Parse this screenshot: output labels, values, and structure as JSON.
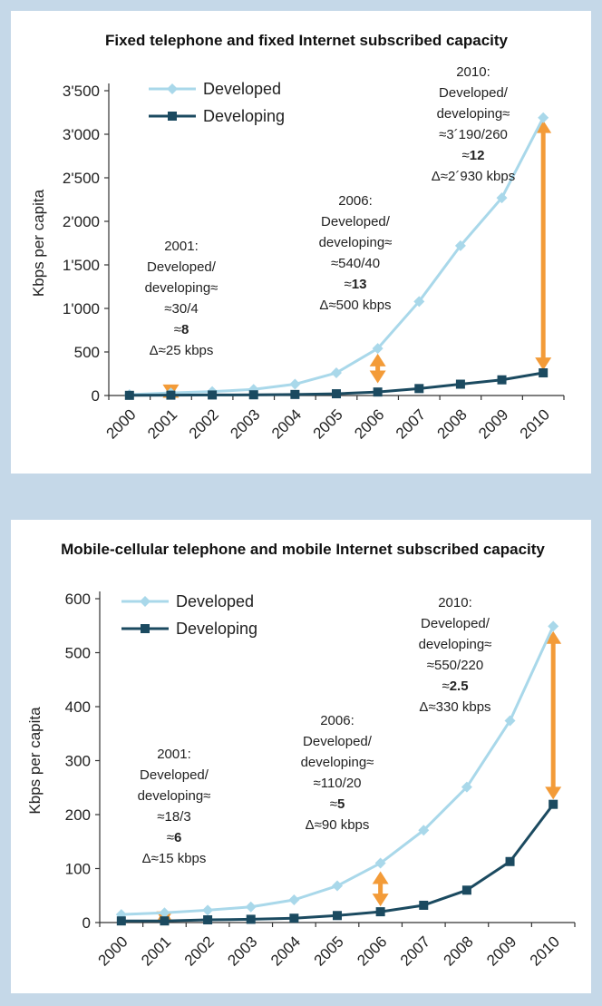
{
  "colors": {
    "developed": "#a9d8ea",
    "developing": "#1b4a60",
    "arrow": "#f39b38",
    "axis": "#333333"
  },
  "chart_data": [
    {
      "type": "line",
      "title": "Fixed telephone and fixed Internet subscribed capacity",
      "ylabel": "Kbps per capita",
      "xlabel": "",
      "categories": [
        "2000",
        "2001",
        "2002",
        "2003",
        "2004",
        "2005",
        "2006",
        "2007",
        "2008",
        "2009",
        "2010"
      ],
      "ylim": [
        0,
        3500
      ],
      "yticks": [
        0,
        500,
        1000,
        1500,
        2000,
        2500,
        3000,
        3500
      ],
      "ytick_labels": [
        "0",
        "500",
        "1'000",
        "1'500",
        "2'000",
        "2'500",
        "3'000",
        "3'500"
      ],
      "series": [
        {
          "name": "Developed",
          "values": [
            10,
            30,
            45,
            70,
            130,
            260,
            540,
            1080,
            1720,
            2270,
            3190
          ]
        },
        {
          "name": "Developing",
          "values": [
            2,
            4,
            6,
            8,
            12,
            20,
            40,
            80,
            130,
            180,
            260
          ]
        }
      ],
      "annotations": [
        {
          "year": "2001",
          "lines": [
            "2001:",
            "Developed/",
            "developing≈",
            "≈30/4",
            "≈8",
            "Δ≈25 kbps"
          ]
        },
        {
          "year": "2006",
          "lines": [
            "2006:",
            "Developed/",
            "developing≈",
            "≈540/40",
            "≈13",
            "Δ≈500 kbps"
          ]
        },
        {
          "year": "2010",
          "lines": [
            "2010:",
            "Developed/",
            "developing≈",
            "≈3´190/260",
            "≈12",
            "Δ≈2´930 kbps"
          ]
        }
      ],
      "arrows": [
        {
          "year": "2001",
          "from": -20,
          "to": 120
        },
        {
          "year": "2006",
          "from": 140,
          "to": 480
        },
        {
          "year": "2010",
          "from": 290,
          "to": 3160
        }
      ]
    },
    {
      "type": "line",
      "title": "Mobile-cellular telephone and mobile Internet subscribed capacity",
      "ylabel": "Kbps per capita",
      "xlabel": "",
      "categories": [
        "2000",
        "2001",
        "2002",
        "2003",
        "2004",
        "2005",
        "2006",
        "2007",
        "2008",
        "2009",
        "2010"
      ],
      "ylim": [
        0,
        600
      ],
      "yticks": [
        0,
        100,
        200,
        300,
        400,
        500,
        600
      ],
      "ytick_labels": [
        "0",
        "100",
        "200",
        "300",
        "400",
        "500",
        "600"
      ],
      "series": [
        {
          "name": "Developed",
          "values": [
            15,
            18,
            23,
            29,
            42,
            68,
            110,
            171,
            251,
            374,
            549
          ]
        },
        {
          "name": "Developing",
          "values": [
            3,
            3,
            5,
            6,
            8,
            13,
            20,
            32,
            60,
            113,
            219
          ]
        }
      ],
      "annotations": [
        {
          "year": "2001",
          "lines": [
            "2001:",
            "Developed/",
            "developing≈",
            "≈18/3",
            "≈6",
            "Δ≈15 kbps"
          ]
        },
        {
          "year": "2006",
          "lines": [
            "2006:",
            "Developed/",
            "developing≈",
            "≈110/20",
            "≈5",
            "Δ≈90 kbps"
          ]
        },
        {
          "year": "2010",
          "lines": [
            "2010:",
            "Developed/",
            "developing≈",
            "≈550/220",
            "≈2.5",
            "Δ≈330 kbps"
          ]
        }
      ],
      "arrows": [
        {
          "year": "2001",
          "from": -3,
          "to": 25
        },
        {
          "year": "2006",
          "from": 30,
          "to": 95
        },
        {
          "year": "2010",
          "from": 228,
          "to": 540
        }
      ]
    }
  ]
}
